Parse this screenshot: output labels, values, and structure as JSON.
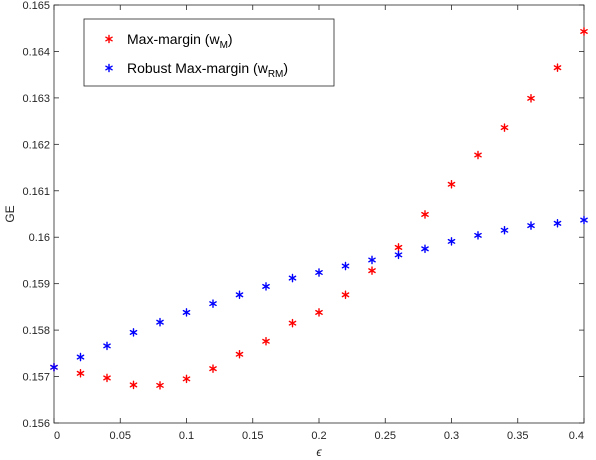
{
  "chart_data": {
    "type": "scatter",
    "xlabel": "ϵ",
    "ylabel": "GE",
    "xlim": [
      0,
      0.4
    ],
    "ylim": [
      0.156,
      0.165
    ],
    "grid": false,
    "legend_position": "top-left",
    "x_ticks": [
      "0",
      "0.05",
      "0.1",
      "0.15",
      "0.2",
      "0.25",
      "0.3",
      "0.35",
      "0.4"
    ],
    "y_ticks": [
      "0.156",
      "0.157",
      "0.158",
      "0.159",
      "0.16",
      "0.161",
      "0.162",
      "0.163",
      "0.164",
      "0.165"
    ],
    "series": [
      {
        "name": "Max-margin (w_M)",
        "legend_main": "Max-margin (w",
        "legend_sub": "M",
        "legend_close": ")",
        "color": "#ff0000",
        "marker": "asterisk",
        "x": [
          0,
          0.02,
          0.04,
          0.06,
          0.08,
          0.1,
          0.12,
          0.14,
          0.16,
          0.18,
          0.2,
          0.22,
          0.24,
          0.26,
          0.28,
          0.3,
          0.32,
          0.34,
          0.36,
          0.38,
          0.4
        ],
        "y": [
          0.1572,
          0.15707,
          0.15697,
          0.15682,
          0.15681,
          0.15695,
          0.15717,
          0.15748,
          0.15776,
          0.15815,
          0.15838,
          0.15876,
          0.15928,
          0.15978,
          0.16049,
          0.16114,
          0.16177,
          0.16236,
          0.16299,
          0.16365,
          0.16443
        ]
      },
      {
        "name": "Robust Max-margin (w_RM)",
        "legend_main": "Robust Max-margin (w",
        "legend_sub": "RM",
        "legend_close": ")",
        "color": "#0000ff",
        "marker": "asterisk",
        "x": [
          0,
          0.02,
          0.04,
          0.06,
          0.08,
          0.1,
          0.12,
          0.14,
          0.16,
          0.18,
          0.2,
          0.22,
          0.24,
          0.26,
          0.28,
          0.3,
          0.32,
          0.34,
          0.36,
          0.38,
          0.4
        ],
        "y": [
          0.1572,
          0.15742,
          0.15766,
          0.15795,
          0.15817,
          0.15838,
          0.15857,
          0.15876,
          0.15894,
          0.15912,
          0.15924,
          0.15938,
          0.15951,
          0.15962,
          0.15975,
          0.15991,
          0.16004,
          0.16015,
          0.16025,
          0.1603,
          0.16037
        ]
      }
    ]
  }
}
